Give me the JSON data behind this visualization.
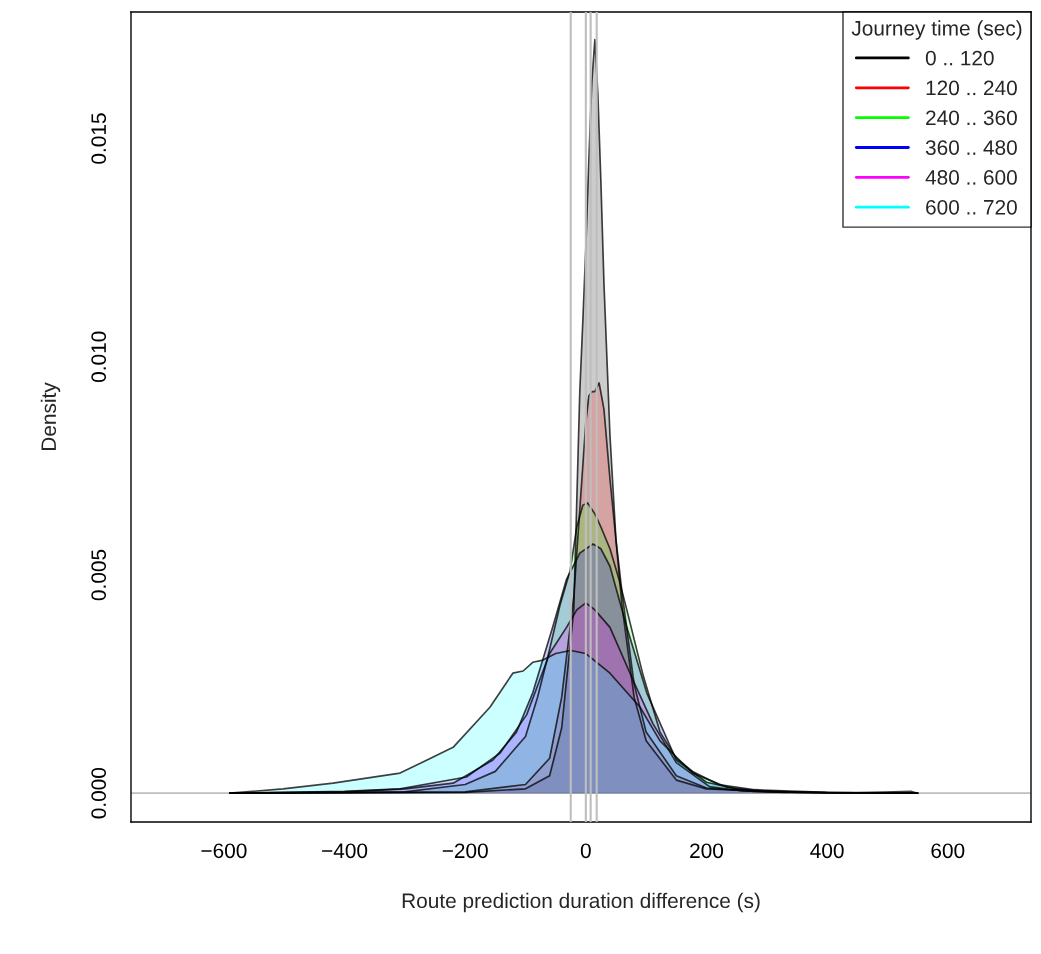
{
  "chart_data": {
    "type": "area",
    "xlabel": "Route prediction duration difference (s)",
    "ylabel": "Density",
    "legend_title": "Journey time (sec)",
    "legend": "top right",
    "grid": false,
    "xlim": [
      -754,
      738
    ],
    "ylim": [
      -0.00066,
      0.0179
    ],
    "xticks": [
      -600,
      -400,
      -200,
      0,
      200,
      400,
      600
    ],
    "yticks": [
      {
        "value": 0,
        "label": "0.000"
      },
      {
        "value": 0.005,
        "label": "0.005"
      },
      {
        "value": 0.01,
        "label": "0.010"
      },
      {
        "value": 0.015,
        "label": "0.015"
      }
    ],
    "ref_lines": [
      {
        "axis": "y",
        "value": 0,
        "color": "#bebebe"
      },
      {
        "axis": "x",
        "value": -25,
        "color": "#bebebe"
      },
      {
        "axis": "x",
        "value": 0,
        "color": "#bebebe"
      },
      {
        "axis": "x",
        "value": 8,
        "color": "#bebebe"
      },
      {
        "axis": "x",
        "value": 18,
        "color": "#bebebe"
      }
    ],
    "series": [
      {
        "name": "0 .. 120",
        "color": "#000000",
        "x": [
          -590,
          -200,
          -100,
          -60,
          -40,
          -20,
          -10,
          -5,
          0,
          5,
          10,
          15,
          20,
          25,
          30,
          40,
          50,
          60,
          80,
          100,
          150,
          200,
          280,
          400,
          550
        ],
        "values": [
          0,
          2e-05,
          0.0001,
          0.0004,
          0.0015,
          0.0042,
          0.0092,
          0.0108,
          0.0125,
          0.0145,
          0.0163,
          0.01727,
          0.016,
          0.014,
          0.0117,
          0.0082,
          0.0058,
          0.0043,
          0.0022,
          0.0012,
          0.0003,
          0.0001,
          5e-05,
          1e-05,
          0
        ]
      },
      {
        "name": "120 .. 240",
        "color": "#ff0000",
        "x": [
          -590,
          -200,
          -100,
          -60,
          -40,
          -20,
          -10,
          0,
          5,
          10,
          15,
          22,
          30,
          40,
          50,
          60,
          80,
          100,
          150,
          200,
          280,
          400,
          550
        ],
        "values": [
          0,
          3e-05,
          0.0002,
          0.0008,
          0.0022,
          0.0045,
          0.0065,
          0.0085,
          0.0091,
          0.0092,
          0.0092,
          0.0094,
          0.0088,
          0.0072,
          0.0058,
          0.0046,
          0.0025,
          0.0014,
          0.0004,
          0.00012,
          4e-05,
          1e-05,
          0
        ]
      },
      {
        "name": "240 .. 360",
        "color": "#00ff00",
        "x": [
          -590,
          -300,
          -200,
          -150,
          -100,
          -80,
          -60,
          -43,
          -26,
          -15,
          -5,
          3,
          15,
          25,
          40,
          55,
          68,
          95,
          123,
          150,
          177,
          220,
          280,
          400,
          550
        ],
        "values": [
          0,
          3e-05,
          0.0002,
          0.0005,
          0.0013,
          0.0022,
          0.0033,
          0.0043,
          0.0051,
          0.0061,
          0.0066,
          0.00665,
          0.0064,
          0.0061,
          0.0056,
          0.0049,
          0.0042,
          0.0027,
          0.0014,
          0.0008,
          0.0005,
          0.0002,
          8e-05,
          2e-05,
          0
        ]
      },
      {
        "name": "360 .. 480",
        "color": "#0000ff",
        "x": [
          -590,
          -400,
          -300,
          -220,
          -154,
          -115,
          -88,
          -55,
          -32,
          -10,
          12,
          25,
          40,
          68,
          101,
          150,
          200,
          250,
          300,
          400,
          550
        ],
        "values": [
          0,
          3e-05,
          0.0001,
          0.00023,
          0.00076,
          0.0014,
          0.0023,
          0.0038,
          0.0049,
          0.0055,
          0.00571,
          0.0056,
          0.0052,
          0.0038,
          0.0023,
          0.00076,
          0.00025,
          0.0001,
          4e-05,
          1e-05,
          0
        ]
      },
      {
        "name": "480 .. 600",
        "color": "#ff00ff",
        "x": [
          -590,
          -400,
          -308,
          -198,
          -142,
          -98,
          -60,
          -32,
          -15,
          0,
          15,
          40,
          78,
          111,
          150,
          205,
          260,
          330,
          450,
          550
        ],
        "values": [
          0,
          4e-05,
          0.0001,
          0.00037,
          0.00092,
          0.0018,
          0.0032,
          0.0038,
          0.0042,
          0.00436,
          0.0042,
          0.0038,
          0.0026,
          0.0016,
          0.0007,
          0.00015,
          5e-05,
          2e-05,
          1e-05,
          0
        ]
      },
      {
        "name": "600 .. 720",
        "color": "#00ffff",
        "x": [
          -590,
          -502,
          -419,
          -308,
          -220,
          -159,
          -121,
          -104,
          -88,
          -71,
          -50,
          -25,
          0,
          40,
          90,
          123,
          177,
          233,
          280,
          350,
          450,
          540,
          550
        ],
        "values": [
          0,
          0.0001,
          0.00023,
          0.00046,
          0.00105,
          0.00197,
          0.00275,
          0.0028,
          0.003,
          0.00305,
          0.0032,
          0.00327,
          0.0032,
          0.00275,
          0.00197,
          0.0012,
          0.00046,
          0.00014,
          6e-05,
          2e-05,
          1e-05,
          4e-05,
          0
        ]
      }
    ]
  }
}
